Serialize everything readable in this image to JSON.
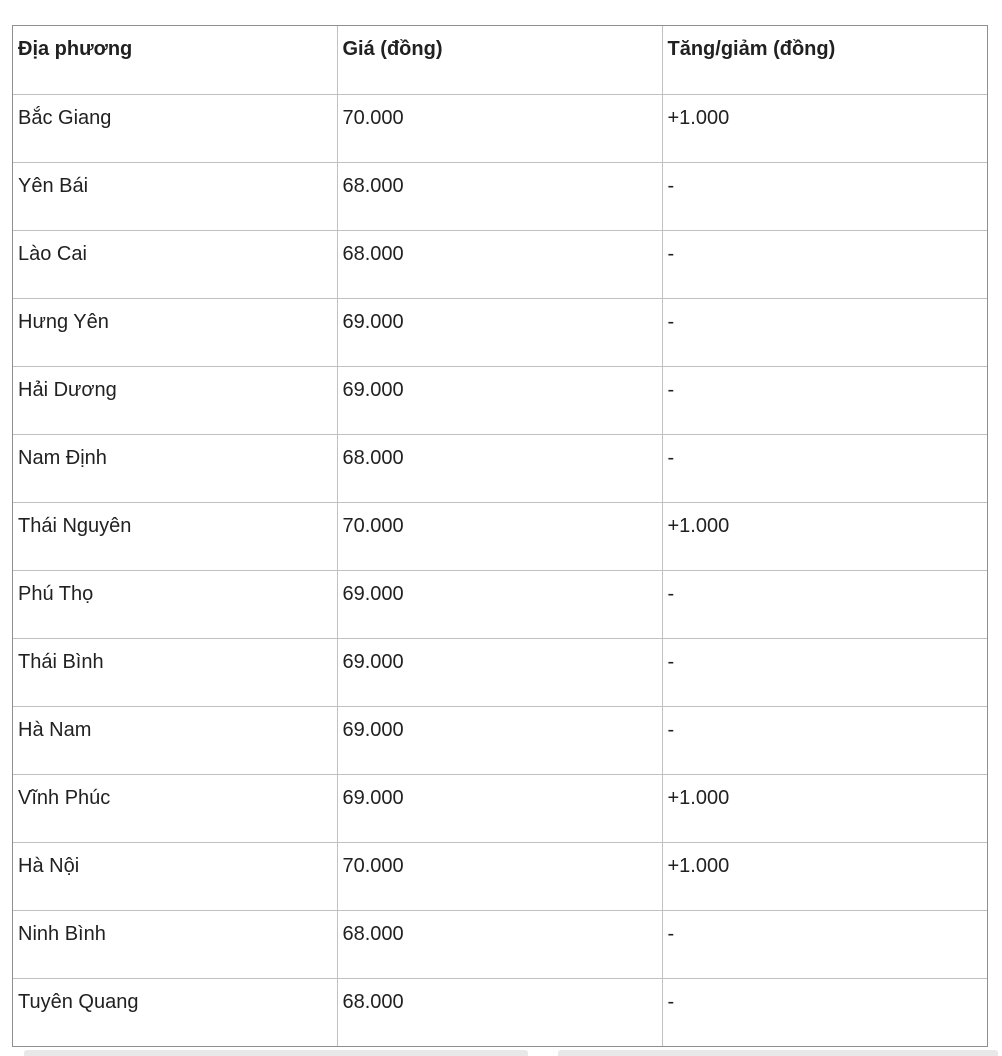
{
  "chart_data": {
    "type": "table",
    "columns": [
      "Địa phương",
      "Giá (đồng)",
      "Tăng/giảm (đồng)"
    ],
    "rows": [
      [
        "Bắc Giang",
        "70.000",
        "+1.000"
      ],
      [
        "Yên Bái",
        "68.000",
        "-"
      ],
      [
        "Lào Cai",
        "68.000",
        "-"
      ],
      [
        "Hưng Yên",
        "69.000",
        "-"
      ],
      [
        "Hải Dương",
        "69.000",
        "-"
      ],
      [
        "Nam Định",
        "68.000",
        "-"
      ],
      [
        "Thái Nguyên",
        "70.000",
        "+1.000"
      ],
      [
        "Phú Thọ",
        "69.000",
        "-"
      ],
      [
        "Thái Bình",
        "69.000",
        "-"
      ],
      [
        "Hà Nam",
        "69.000",
        "-"
      ],
      [
        "Vĩnh Phúc",
        "69.000",
        "+1.000"
      ],
      [
        "Hà Nội",
        "70.000",
        "+1.000"
      ],
      [
        "Ninh Bình",
        "68.000",
        "-"
      ],
      [
        "Tuyên Quang",
        "68.000",
        "-"
      ]
    ]
  },
  "colors": {
    "text": "#212121",
    "outer_border": "#8f8f8f",
    "inner_border": "#c0c0c0",
    "background": "#ffffff",
    "bottom_strip": "#e8e8e8"
  }
}
